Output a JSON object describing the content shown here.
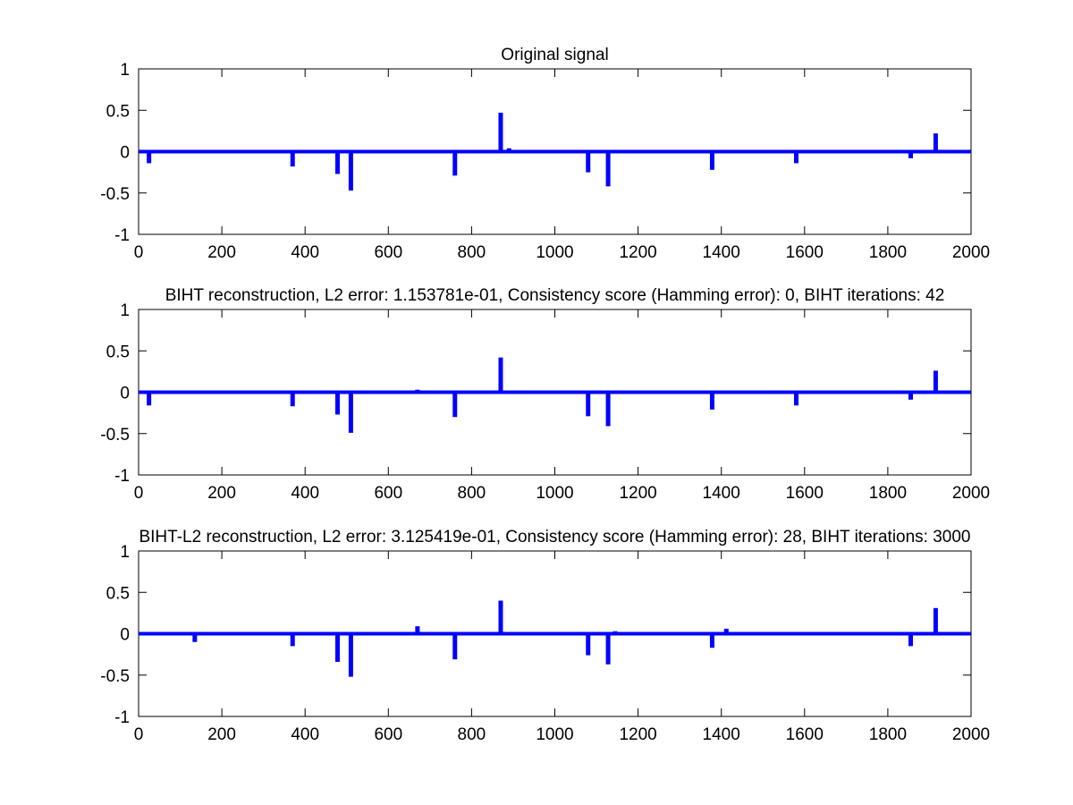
{
  "chart_data": [
    {
      "type": "bar",
      "title": "Original signal",
      "xlim": [
        0,
        2000
      ],
      "ylim": [
        -1,
        1
      ],
      "xticks": [
        0,
        200,
        400,
        600,
        800,
        1000,
        1200,
        1400,
        1600,
        1800,
        2000
      ],
      "yticks": [
        -1,
        -0.5,
        0,
        0.5,
        1
      ],
      "xtick_labels": [
        "0",
        "200",
        "400",
        "600",
        "800",
        "1000",
        "1200",
        "1400",
        "1600",
        "1800",
        "2000"
      ],
      "ytick_labels": [
        "-1",
        "-0.5",
        "0",
        "0.5",
        "1"
      ],
      "grid": false,
      "color": "#0000ff",
      "x": [
        25,
        370,
        478,
        510,
        760,
        870,
        890,
        1080,
        1128,
        1180,
        1378,
        1580,
        1855,
        1915
      ],
      "values": [
        -0.14,
        -0.18,
        -0.27,
        -0.47,
        -0.29,
        0.47,
        0.04,
        -0.25,
        -0.42,
        0.02,
        -0.22,
        -0.14,
        -0.08,
        0.22
      ]
    },
    {
      "type": "bar",
      "title": "BIHT reconstruction, L2 error: 1.153781e-01, Consistency score (Hamming error): 0, BIHT iterations: 42",
      "xlim": [
        0,
        2000
      ],
      "ylim": [
        -1,
        1
      ],
      "xticks": [
        0,
        200,
        400,
        600,
        800,
        1000,
        1200,
        1400,
        1600,
        1800,
        2000
      ],
      "yticks": [
        -1,
        -0.5,
        0,
        0.5,
        1
      ],
      "xtick_labels": [
        "0",
        "200",
        "400",
        "600",
        "800",
        "1000",
        "1200",
        "1400",
        "1600",
        "1800",
        "2000"
      ],
      "ytick_labels": [
        "-1",
        "-0.5",
        "0",
        "0.5",
        "1"
      ],
      "grid": false,
      "color": "#0000ff",
      "x": [
        25,
        370,
        478,
        510,
        670,
        760,
        870,
        1080,
        1128,
        1378,
        1530,
        1580,
        1855,
        1915
      ],
      "values": [
        -0.16,
        -0.17,
        -0.27,
        -0.49,
        0.03,
        -0.3,
        0.42,
        -0.29,
        -0.41,
        -0.21,
        0.02,
        -0.16,
        -0.09,
        0.26
      ]
    },
    {
      "type": "bar",
      "title": "BIHT-L2 reconstruction, L2 error: 3.125419e-01, Consistency score (Hamming error): 28, BIHT iterations: 3000",
      "xlim": [
        0,
        2000
      ],
      "ylim": [
        -1,
        1
      ],
      "xticks": [
        0,
        200,
        400,
        600,
        800,
        1000,
        1200,
        1400,
        1600,
        1800,
        2000
      ],
      "yticks": [
        -1,
        -0.5,
        0,
        0.5,
        1
      ],
      "xtick_labels": [
        "0",
        "200",
        "400",
        "600",
        "800",
        "1000",
        "1200",
        "1400",
        "1600",
        "1800",
        "2000"
      ],
      "ytick_labels": [
        "-1",
        "-0.5",
        "0",
        "0.5",
        "1"
      ],
      "grid": false,
      "color": "#0000ff",
      "x": [
        135,
        370,
        478,
        510,
        580,
        670,
        760,
        870,
        1080,
        1128,
        1145,
        1378,
        1412,
        1855,
        1915
      ],
      "values": [
        -0.1,
        -0.15,
        -0.34,
        -0.52,
        0.02,
        0.09,
        -0.31,
        0.4,
        -0.26,
        -0.37,
        0.03,
        -0.17,
        0.06,
        -0.15,
        0.31
      ]
    }
  ]
}
